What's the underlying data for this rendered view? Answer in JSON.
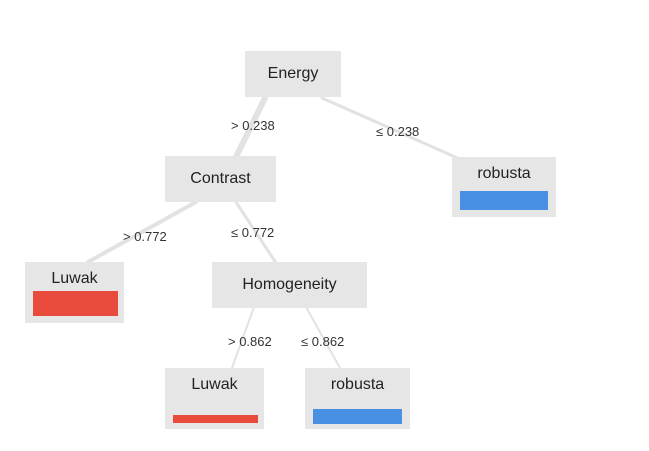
{
  "colors": {
    "node_bg": "#e6e6e6",
    "edge": "#e2e2e2",
    "luwak": "#e84a3c",
    "robusta": "#4a90e2"
  },
  "nodes": {
    "energy": {
      "label": "Energy"
    },
    "contrast": {
      "label": "Contrast"
    },
    "homogeneity": {
      "label": "Homogeneity"
    },
    "leaf_robusta_1": {
      "label": "robusta",
      "class": "robusta",
      "fraction": 1.0
    },
    "leaf_luwak_1": {
      "label": "Luwak",
      "class": "luwak",
      "fraction": 1.0
    },
    "leaf_luwak_2": {
      "label": "Luwak",
      "class": "luwak",
      "fraction": 1.0
    },
    "leaf_robusta_2": {
      "label": "robusta",
      "class": "robusta",
      "fraction": 1.0
    }
  },
  "edges": {
    "energy_gt": "> 0.238",
    "energy_le": "≤ 0.238",
    "contrast_gt": "> 0.772",
    "contrast_le": "≤ 0.772",
    "homogeneity_gt": "> 0.862",
    "homogeneity_le": "≤ 0.862"
  }
}
